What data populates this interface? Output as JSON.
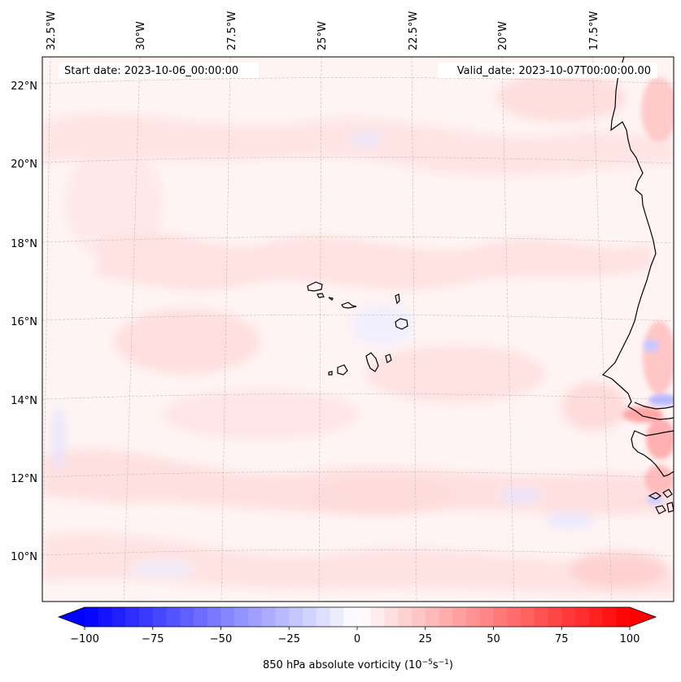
{
  "map": {
    "projection": "Lambert conformal (approx.)",
    "extent": {
      "lon_min": -33.0,
      "lon_max": -15.5,
      "lat_min": 9.0,
      "lat_max": 22.8
    },
    "colors": {
      "coastline": "#000000",
      "gridline": "#bbbbbb",
      "background_field": "#fff2f2",
      "weak_positive": "#ffdcdc",
      "moderate_positive": "#ff9a9a",
      "weak_negative": "#e8e8ff",
      "moderate_negative": "#b4b4ff"
    },
    "lon_labels": [
      {
        "lon": -32.5,
        "text": "32.5°W"
      },
      {
        "lon": -30.0,
        "text": "30°W"
      },
      {
        "lon": -27.5,
        "text": "27.5°W"
      },
      {
        "lon": -25.0,
        "text": "25°W"
      },
      {
        "lon": -22.5,
        "text": "22.5°W"
      },
      {
        "lon": -20.0,
        "text": "20°W"
      },
      {
        "lon": -17.5,
        "text": "17.5°W"
      }
    ],
    "lat_labels": [
      {
        "lat": 22,
        "text": "22°N"
      },
      {
        "lat": 20,
        "text": "20°N"
      },
      {
        "lat": 18,
        "text": "18°N"
      },
      {
        "lat": 16,
        "text": "16°N"
      },
      {
        "lat": 14,
        "text": "14°N"
      },
      {
        "lat": 12,
        "text": "12°N"
      },
      {
        "lat": 10,
        "text": "10°N"
      }
    ],
    "start_date": "Start date: 2023-10-06_00:00:00",
    "valid_date": "Valid_date: 2023-10-07T00:00:00.00",
    "features": [
      "Cape Verde islands",
      "West African coastline (Senegal, Gambia, Guinea-Bissau)"
    ]
  },
  "colorbar": {
    "min": -100,
    "max": 100,
    "step": 5,
    "ticks": [
      -100,
      -75,
      -50,
      -25,
      0,
      25,
      50,
      75,
      100
    ],
    "tick_labels": [
      "−100",
      "−75",
      "−50",
      "−25",
      "0",
      "25",
      "50",
      "75",
      "100"
    ],
    "label": "850 hPa absolute vorticity (10",
    "label_exp1": "−5",
    "label_mid": "s",
    "label_exp2": "−1",
    "label_end": ")",
    "color_min": "#0000ff",
    "color_mid": "#ffffff",
    "color_max": "#ff0000"
  }
}
